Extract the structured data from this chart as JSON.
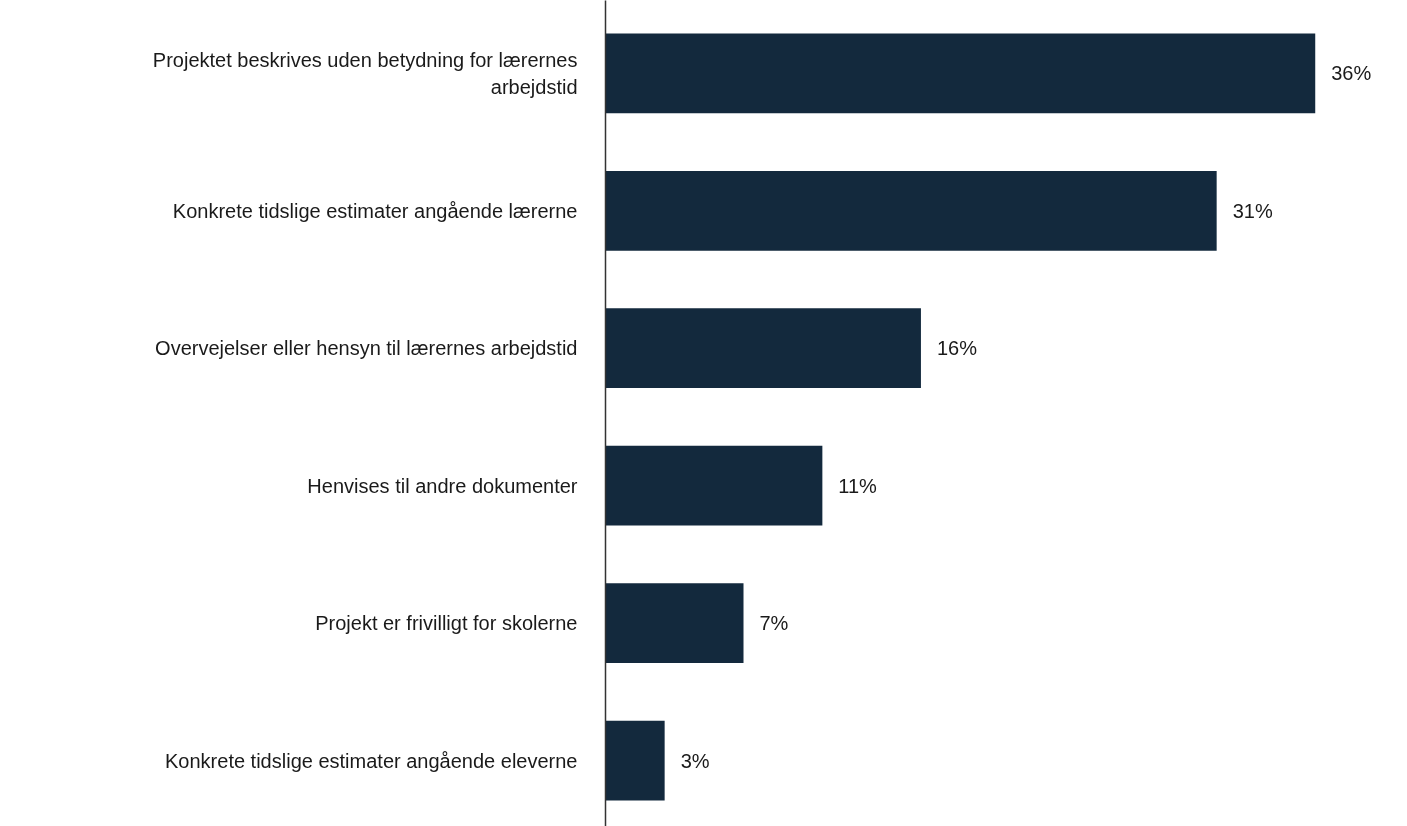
{
  "chart_data": {
    "type": "bar",
    "orientation": "horizontal",
    "categories": [
      "Projektet beskrives uden betydning for lærernes arbejdstid",
      "Konkrete tidslige estimater angående lærerne",
      "Overvejelser eller hensyn til lærernes arbejdstid",
      "Henvises til andre dokumenter",
      "Projekt er frivilligt for skolerne",
      "Konkrete tidslige estimater angående eleverne"
    ],
    "values": [
      36,
      31,
      16,
      11,
      7,
      3
    ],
    "color": "#13293d",
    "value_labels": [
      "36%",
      "31%",
      "16%",
      "11%",
      "7%",
      "3%"
    ]
  }
}
